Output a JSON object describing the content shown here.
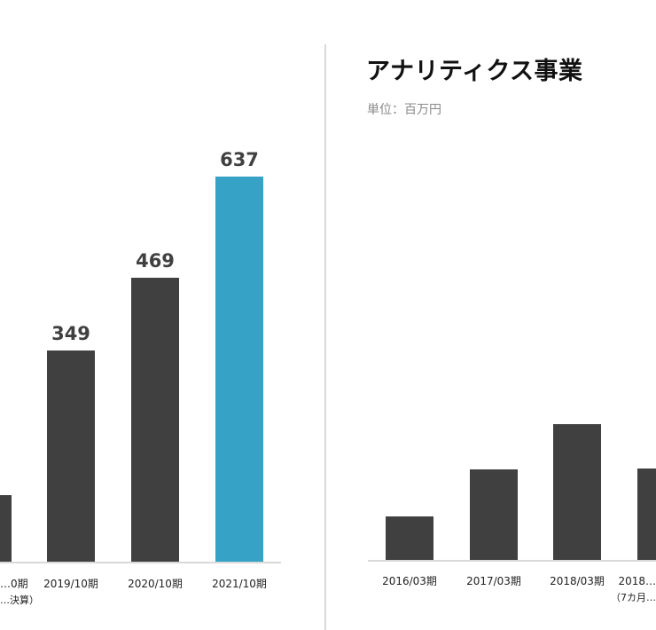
{
  "chart_data": [
    {
      "type": "bar",
      "title": "",
      "categories": [
        "…0期",
        "2019/10期",
        "2020/10期",
        "2021/10期"
      ],
      "category_notes": [
        "…決算）",
        "",
        "",
        ""
      ],
      "values": [
        110,
        349,
        469,
        637
      ],
      "data_labels": [
        "",
        "349",
        "469",
        "637"
      ],
      "colors": [
        "#404040",
        "#404040",
        "#404040",
        "#36a2c6"
      ],
      "ylim": [
        0,
        637
      ]
    },
    {
      "type": "bar",
      "title": "アナリティクス事業",
      "subtitle": "単位：百万円",
      "categories": [
        "2016/03期",
        "2017/03期",
        "2018/03期",
        "2018…"
      ],
      "category_notes": [
        "",
        "",
        "",
        "（7カ月…"
      ],
      "values": [
        72,
        149,
        224,
        151
      ],
      "colors": [
        "#404040",
        "#404040",
        "#404040",
        "#404040"
      ],
      "ylim": [
        0,
        637
      ]
    }
  ]
}
